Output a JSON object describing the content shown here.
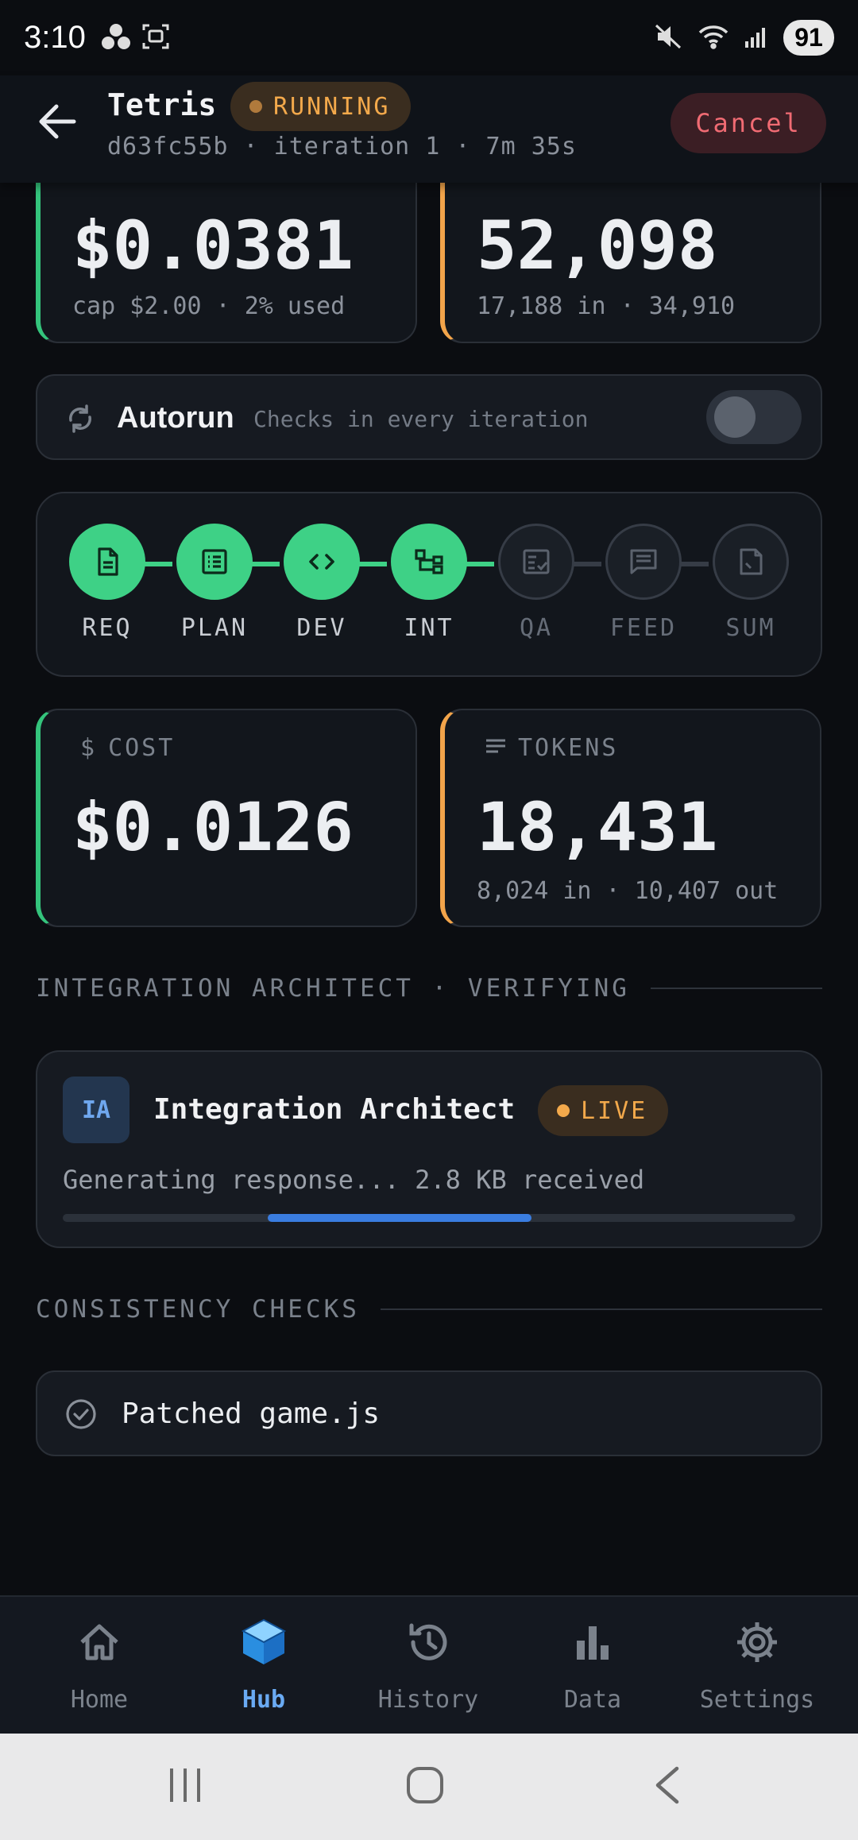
{
  "status_bar": {
    "time": "3:10",
    "battery": "91"
  },
  "header": {
    "title": "Tetris",
    "status_badge": "RUNNING",
    "subtitle": "d63fc55b · iteration 1 · 7m 35s",
    "cancel_label": "Cancel"
  },
  "top_cards": {
    "cost_value": "$0.0381",
    "cost_sub": "cap $2.00 · 2% used",
    "tokens_value": "52,098",
    "tokens_sub": "17,188 in · 34,910"
  },
  "autorun": {
    "title": "Autorun",
    "description": "Checks in every iteration",
    "enabled": false
  },
  "pipeline": {
    "steps": [
      {
        "label": "REQ",
        "icon": "document-icon",
        "state": "done"
      },
      {
        "label": "PLAN",
        "icon": "list-icon",
        "state": "done"
      },
      {
        "label": "DEV",
        "icon": "code-icon",
        "state": "done"
      },
      {
        "label": "INT",
        "icon": "integration-icon",
        "state": "done"
      },
      {
        "label": "QA",
        "icon": "checklist-icon",
        "state": "pending"
      },
      {
        "label": "FEED",
        "icon": "feedback-icon",
        "state": "pending"
      },
      {
        "label": "SUM",
        "icon": "summary-icon",
        "state": "pending"
      }
    ]
  },
  "stage_cards": {
    "cost_label": "COST",
    "cost_value": "$0.0126",
    "tokens_label": "TOKENS",
    "tokens_value": "18,431",
    "tokens_sub": "8,024 in · 10,407 out"
  },
  "agent_section": {
    "header": "INTEGRATION ARCHITECT · VERIFYING",
    "avatar": "IA",
    "name": "Integration Architect",
    "badge": "LIVE",
    "status": "Generating response... 2.8 KB received",
    "progress_start": 0.28,
    "progress_end": 0.64
  },
  "consistency": {
    "header": "CONSISTENCY CHECKS",
    "items": [
      {
        "text": "Patched game.js"
      }
    ]
  },
  "bottom_nav": {
    "items": [
      {
        "label": "Home",
        "icon": "home-icon",
        "active": false
      },
      {
        "label": "Hub",
        "icon": "cube-icon",
        "active": true
      },
      {
        "label": "History",
        "icon": "history-icon",
        "active": false
      },
      {
        "label": "Data",
        "icon": "bar-chart-icon",
        "active": false
      },
      {
        "label": "Settings",
        "icon": "gear-icon",
        "active": false
      }
    ]
  },
  "colors": {
    "accent_green": "#3ed186",
    "accent_orange": "#f3a94b",
    "accent_blue": "#3a7de0",
    "cancel_red": "#f06b73"
  }
}
